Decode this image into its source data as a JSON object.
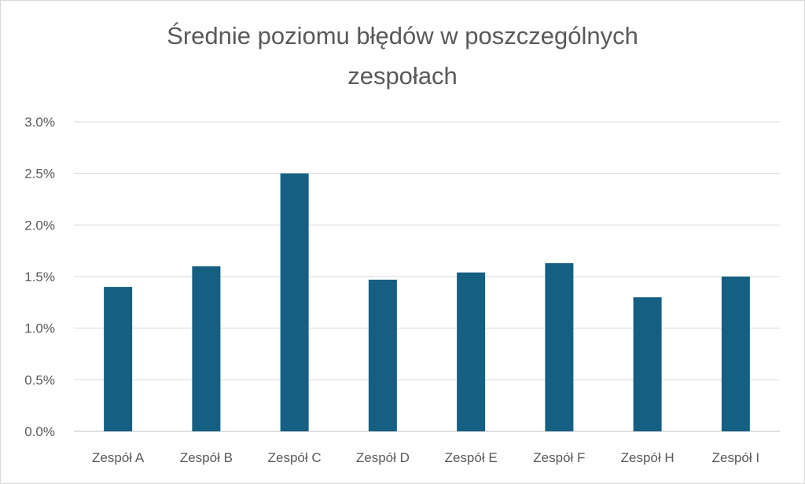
{
  "chart_data": {
    "type": "bar",
    "title_lines": [
      "Średnie poziomu błędów w poszczególnych",
      "zespołach"
    ],
    "categories": [
      "Zespół A",
      "Zespół B",
      "Zespół C",
      "Zespół D",
      "Zespół E",
      "Zespół F",
      "Zespół H",
      "Zespół I"
    ],
    "values": [
      0.014,
      0.016,
      0.025,
      0.0147,
      0.0154,
      0.0163,
      0.013,
      0.015
    ],
    "ylim": [
      0,
      0.03
    ],
    "yticks": [
      0,
      0.005,
      0.01,
      0.015,
      0.02,
      0.025,
      0.03
    ],
    "ytick_labels": [
      "0.0%",
      "0.5%",
      "1.0%",
      "1.5%",
      "2.0%",
      "2.5%",
      "3.0%"
    ],
    "grid": true,
    "colors": {
      "bar": "#156082",
      "grid": "#d9d9d9",
      "text": "#595959"
    }
  }
}
